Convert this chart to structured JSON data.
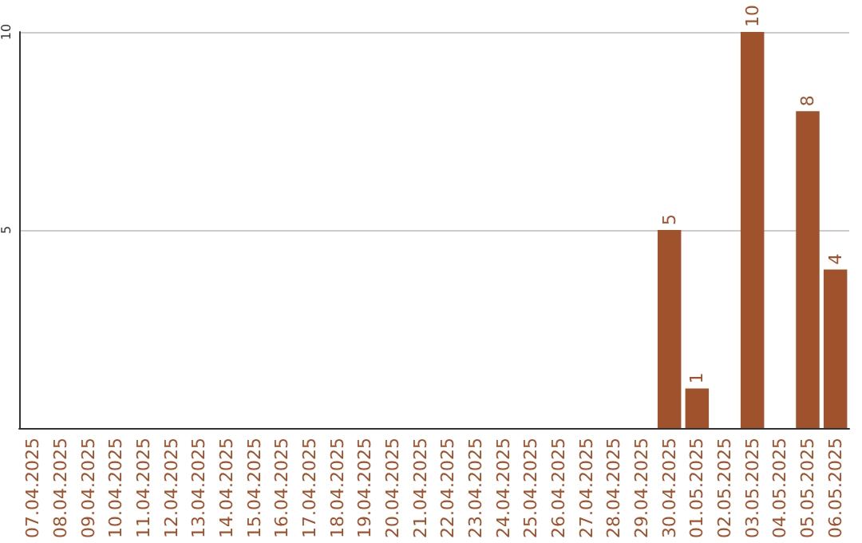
{
  "chart_data": {
    "type": "bar",
    "categories": [
      "07.04.2025",
      "08.04.2025",
      "09.04.2025",
      "10.04.2025",
      "11.04.2025",
      "12.04.2025",
      "13.04.2025",
      "14.04.2025",
      "15.04.2025",
      "16.04.2025",
      "17.04.2025",
      "18.04.2025",
      "19.04.2025",
      "20.04.2025",
      "21.04.2025",
      "22.04.2025",
      "23.04.2025",
      "24.04.2025",
      "25.04.2025",
      "26.04.2025",
      "27.04.2025",
      "28.04.2025",
      "29.04.2025",
      "30.04.2025",
      "01.05.2025",
      "02.05.2025",
      "03.05.2025",
      "04.05.2025",
      "05.05.2025",
      "06.05.2025"
    ],
    "values": [
      0,
      0,
      0,
      0,
      0,
      0,
      0,
      0,
      0,
      0,
      0,
      0,
      0,
      0,
      0,
      0,
      0,
      0,
      0,
      0,
      0,
      0,
      0,
      5,
      1,
      0,
      10,
      0,
      8,
      4
    ],
    "value_labels": [
      null,
      null,
      null,
      null,
      null,
      null,
      null,
      null,
      null,
      null,
      null,
      null,
      null,
      null,
      null,
      null,
      null,
      null,
      null,
      null,
      null,
      null,
      null,
      "5",
      "1",
      null,
      "10",
      null,
      "8",
      "4"
    ],
    "color": "#a0522d",
    "ylim": [
      0,
      10
    ],
    "yticks": [
      5,
      10
    ],
    "grid": "y"
  }
}
